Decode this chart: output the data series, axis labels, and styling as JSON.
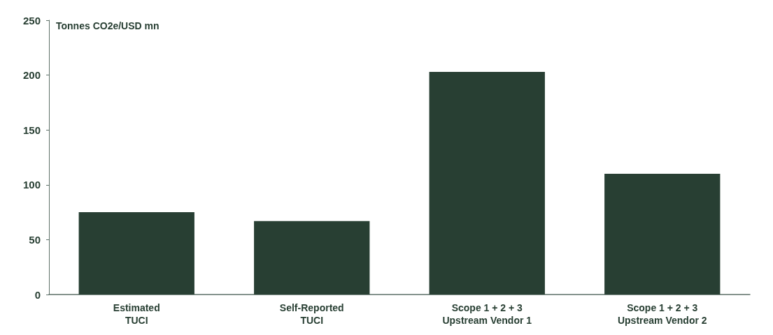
{
  "chart_data": {
    "type": "bar",
    "ylabel": "Tonnes CO2e/USD mn",
    "categories": [
      "Estimated\nTUCI",
      "Self-Reported\nTUCI",
      "Scope 1 + 2 + 3\nUpstream Vendor 1",
      "Scope 1 + 2 + 3\nUpstream Vendor 2"
    ],
    "values": [
      75,
      67,
      203,
      110
    ],
    "color": "#283f33",
    "ylim": [
      0,
      250
    ],
    "yticks": [
      0,
      50,
      100,
      150,
      200,
      250
    ],
    "grid": false
  }
}
